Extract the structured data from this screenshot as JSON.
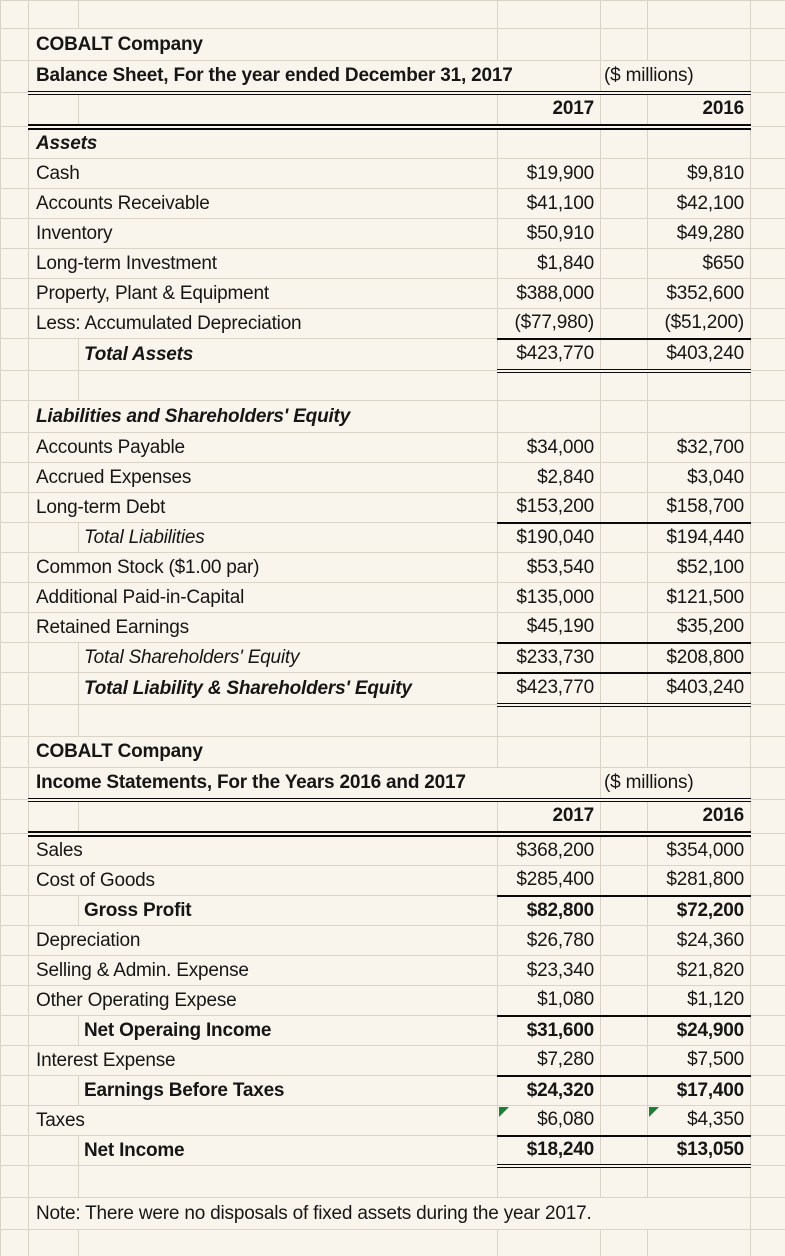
{
  "colors": {
    "background": "#FAF5EC",
    "gridline": "#D9D3C8",
    "rule_black": "#0a0a0a",
    "error_flag_green": "#1F7D35"
  },
  "icons": {
    "error_flag": "green top-left corner triangle (spreadsheet cell flag)"
  },
  "sheet_rows": [
    {
      "t": "blank"
    },
    {
      "t": "title",
      "label": "COBALT Company"
    },
    {
      "t": "title_units",
      "label": "Balance Sheet, For the year ended December 31, 2017",
      "units": "($ millions)"
    },
    {
      "t": "years",
      "y1": "2017",
      "y2": "2016"
    },
    {
      "t": "section",
      "label": "Assets"
    },
    {
      "t": "item",
      "label": "Cash",
      "v1": "$19,900",
      "v2": "$9,810"
    },
    {
      "t": "item",
      "label": "Accounts Receivable",
      "v1": "$41,100",
      "v2": "$42,100"
    },
    {
      "t": "item",
      "label": "Inventory",
      "v1": "$50,910",
      "v2": "$49,280"
    },
    {
      "t": "item",
      "label": "Long-term Investment",
      "v1": "$1,840",
      "v2": "$650"
    },
    {
      "t": "item",
      "label": "Property, Plant & Equipment",
      "v1": "$388,000",
      "v2": "$352,600"
    },
    {
      "t": "item",
      "label": "Less: Accumulated Depreciation",
      "v1": "($77,980)",
      "v2": "($51,200)"
    },
    {
      "t": "total",
      "style": "bi",
      "label": "Total Assets",
      "v1": "$423,770",
      "v2": "$403,240"
    },
    {
      "t": "blank"
    },
    {
      "t": "section",
      "label": "Liabilities and Shareholders' Equity"
    },
    {
      "t": "item",
      "label": "Accounts Payable",
      "v1": "$34,000",
      "v2": "$32,700"
    },
    {
      "t": "item",
      "label": "Accrued Expenses",
      "v1": "$2,840",
      "v2": "$3,040"
    },
    {
      "t": "item",
      "label": "Long-term Debt",
      "v1": "$153,200",
      "v2": "$158,700"
    },
    {
      "t": "total",
      "style": "it",
      "label": "Total Liabilities",
      "v1": "$190,040",
      "v2": "$194,440"
    },
    {
      "t": "item",
      "label": "Common Stock ($1.00 par)",
      "v1": "$53,540",
      "v2": "$52,100"
    },
    {
      "t": "item",
      "label": "Additional Paid-in-Capital",
      "v1": "$135,000",
      "v2": "$121,500"
    },
    {
      "t": "item",
      "label": "Retained Earnings",
      "v1": "$45,190",
      "v2": "$35,200"
    },
    {
      "t": "total",
      "style": "it",
      "label": "Total Shareholders' Equity",
      "v1": "$233,730",
      "v2": "$208,800"
    },
    {
      "t": "total",
      "style": "bi",
      "label": "Total Liability & Shareholders' Equity",
      "v1": "$423,770",
      "v2": "$403,240"
    },
    {
      "t": "blank"
    },
    {
      "t": "title",
      "label": "COBALT Company"
    },
    {
      "t": "title_units",
      "label": "Income Statements, For the Years 2016 and 2017",
      "units": "($ millions)"
    },
    {
      "t": "years",
      "y1": "2017",
      "y2": "2016"
    },
    {
      "t": "item",
      "label": "Sales",
      "v1": "$368,200",
      "v2": "$354,000"
    },
    {
      "t": "item",
      "label": "Cost of Goods",
      "v1": "$285,400",
      "v2": "$281,800"
    },
    {
      "t": "total",
      "style": "bold",
      "label": "Gross Profit",
      "v1": "$82,800",
      "v2": "$72,200"
    },
    {
      "t": "item",
      "label": "Depreciation",
      "v1": "$26,780",
      "v2": "$24,360"
    },
    {
      "t": "item",
      "label": "Selling & Admin. Expense",
      "v1": "$23,340",
      "v2": "$21,820"
    },
    {
      "t": "item",
      "label": "Other Operating Expese",
      "v1": "$1,080",
      "v2": "$1,120"
    },
    {
      "t": "total",
      "style": "bold",
      "label": "Net Operaing Income",
      "v1": "$31,600",
      "v2": "$24,900"
    },
    {
      "t": "item",
      "label": "Interest Expense",
      "v1": "$7,280",
      "v2": "$7,500"
    },
    {
      "t": "total",
      "style": "bold",
      "label": "Earnings Before Taxes",
      "v1": "$24,320",
      "v2": "$17,400"
    },
    {
      "t": "item",
      "label": "Taxes",
      "v1": "$6,080",
      "v2": "$4,350",
      "flag": true
    },
    {
      "t": "total",
      "style": "bold",
      "label": "Net Income",
      "v1": "$18,240",
      "v2": "$13,050"
    },
    {
      "t": "blank"
    },
    {
      "t": "note",
      "label": "Note: There were no disposals of fixed assets during the year 2017."
    },
    {
      "t": "blank"
    }
  ]
}
